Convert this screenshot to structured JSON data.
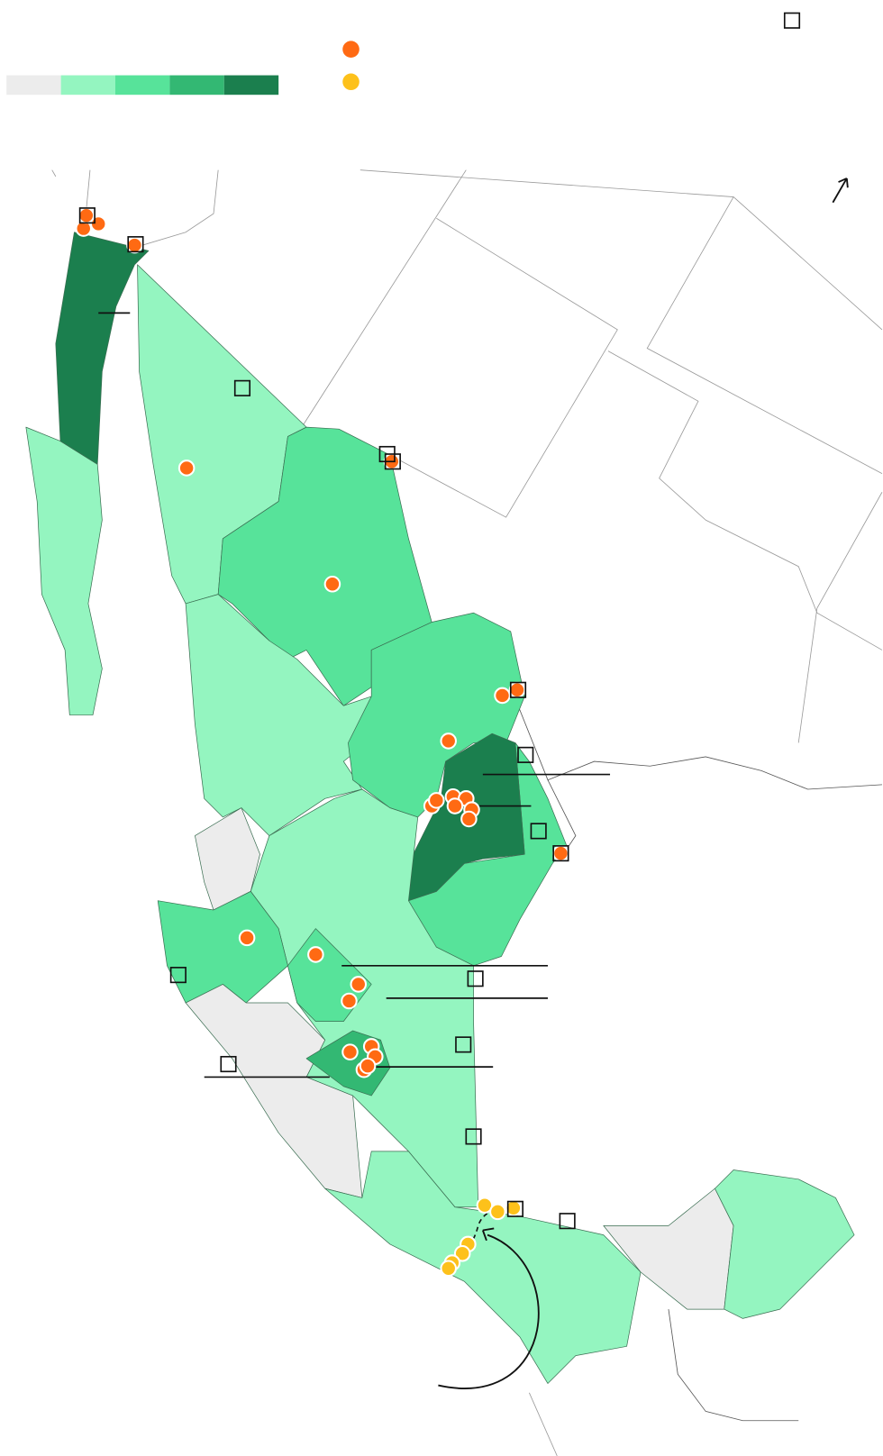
{
  "legend": {
    "scale_colors": [
      "#ececec",
      "#94f5c0",
      "#57e39a",
      "#33b873",
      "#1b7f4e"
    ],
    "marker_colors": [
      "#ff6a13",
      "#fdc11b"
    ]
  }
}
